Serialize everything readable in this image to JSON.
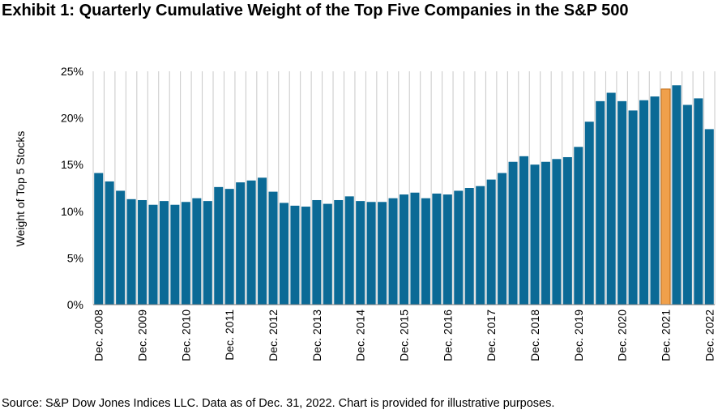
{
  "page": {
    "title": "Exhibit 1: Quarterly Cumulative Weight of the Top Five Companies in the S&P 500",
    "source": "Source: S&P Dow Jones Indices LLC. Data as of Dec. 31, 2022. Chart is provided for illustrative purposes."
  },
  "chart_data": {
    "type": "bar",
    "title": "Exhibit 1: Quarterly Cumulative Weight of the Top Five Companies in the S&P 500",
    "xlabel": "",
    "ylabel": "Weight of Top 5 Stocks",
    "ylim": [
      0,
      25
    ],
    "yticks": [
      "0%",
      "5%",
      "10%",
      "15%",
      "20%",
      "25%"
    ],
    "grid": "vertical",
    "colors": {
      "bar": "#0b6a96",
      "highlight": "#f0a04b",
      "highlight_edge": "#c06a10",
      "grid": "#c8c8c8",
      "axis": "#7a7a7a"
    },
    "x_tick_labels": [
      {
        "index": 0,
        "label": "Dec. 2008"
      },
      {
        "index": 4,
        "label": "Dec. 2009"
      },
      {
        "index": 8,
        "label": "Dec. 2010"
      },
      {
        "index": 12,
        "label": "Dec. 2011"
      },
      {
        "index": 16,
        "label": "Dec. 2012"
      },
      {
        "index": 20,
        "label": "Dec. 2013"
      },
      {
        "index": 24,
        "label": "Dec. 2014"
      },
      {
        "index": 28,
        "label": "Dec. 2015"
      },
      {
        "index": 32,
        "label": "Dec. 2016"
      },
      {
        "index": 36,
        "label": "Dec. 2017"
      },
      {
        "index": 40,
        "label": "Dec. 2018"
      },
      {
        "index": 44,
        "label": "Dec. 2019"
      },
      {
        "index": 48,
        "label": "Dec. 2020"
      },
      {
        "index": 52,
        "label": "Dec. 2021"
      },
      {
        "index": 56,
        "label": "Dec. 2022"
      }
    ],
    "highlight_index": 52,
    "values": [
      14.1,
      13.2,
      12.2,
      11.3,
      11.2,
      10.7,
      11.1,
      10.7,
      11.0,
      11.4,
      11.1,
      12.6,
      12.4,
      13.1,
      13.3,
      13.6,
      12.1,
      10.9,
      10.6,
      10.5,
      11.2,
      10.8,
      11.2,
      11.6,
      11.1,
      11.0,
      11.0,
      11.4,
      11.8,
      12.0,
      11.4,
      11.9,
      11.8,
      12.2,
      12.5,
      12.7,
      13.4,
      14.1,
      15.3,
      15.9,
      15.0,
      15.3,
      15.6,
      15.8,
      16.9,
      19.6,
      21.8,
      22.7,
      21.8,
      20.8,
      21.9,
      22.3,
      23.1,
      23.5,
      21.4,
      22.1,
      18.8
    ]
  }
}
